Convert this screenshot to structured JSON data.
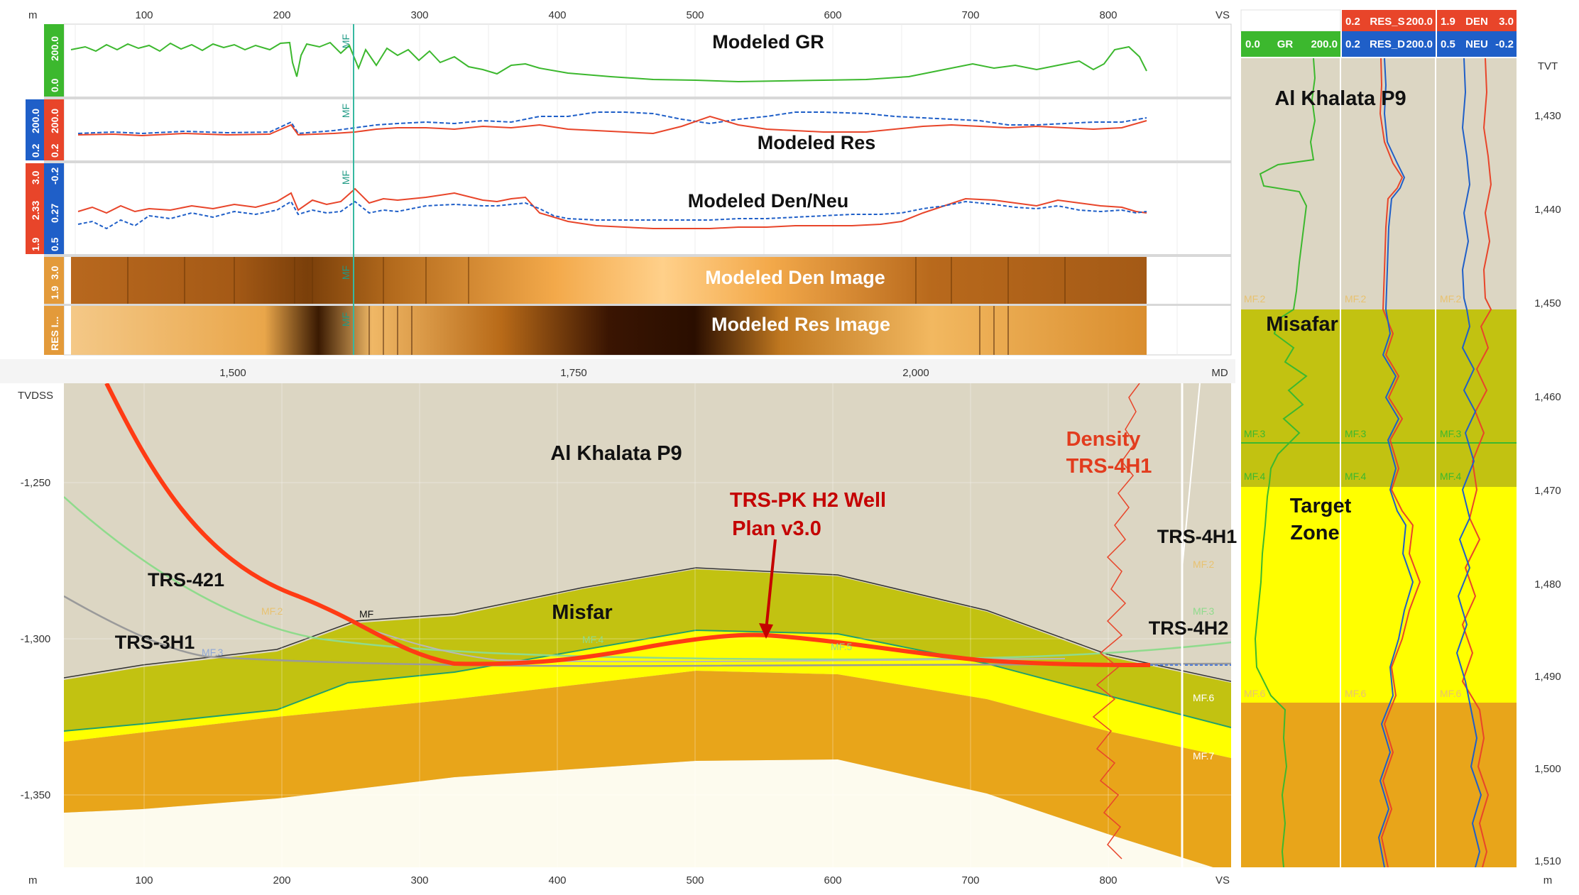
{
  "top_axis": {
    "unit": "m",
    "ticks": [
      "100",
      "200",
      "300",
      "400",
      "500",
      "600",
      "700",
      "800"
    ],
    "end_label": "VS"
  },
  "tracks": {
    "gr": {
      "title": "Modeled GR",
      "scale": [
        "0.0",
        "200.0"
      ],
      "marker": "MF"
    },
    "res": {
      "title": "Modeled Res",
      "scale_blue": [
        "0.2",
        "200.0"
      ],
      "scale_red": [
        "0.2",
        "200.0"
      ],
      "marker": "MF"
    },
    "denneu": {
      "title": "Modeled Den/Neu",
      "scale_red": [
        "1.9",
        "2.33",
        "3.0"
      ],
      "scale_blue": [
        "0.5",
        "0.27",
        "-0.2"
      ],
      "marker": "MF"
    },
    "den_image": {
      "title": "Modeled Den Image",
      "scale": [
        "1.9",
        "3.0"
      ],
      "marker": "MF"
    },
    "res_image": {
      "title": "Modeled Res Image",
      "scale": [
        "RES I..."
      ],
      "marker": "MF"
    }
  },
  "md_axis": {
    "ticks": [
      "1,500",
      "1,750",
      "2,000"
    ],
    "end_label": "MD"
  },
  "section": {
    "y_label": "TVDSS",
    "y_ticks": [
      "-1,250",
      "-1,300",
      "-1,350"
    ],
    "zone_labels": [
      "Al Khalata P9",
      "Misfar"
    ],
    "wells": [
      "TRS-421",
      "TRS-3H1",
      "TRS-4H1",
      "TRS-4H2"
    ],
    "plan_label_line1": "TRS-PK H2 Well",
    "plan_label_line2": "Plan v3.0",
    "density_label_line1": "Density",
    "density_label_line2": "TRS-4H1",
    "marker_labels": [
      "MF",
      "MF.2",
      "MF.3",
      "MF.4",
      "MF.5",
      "MF.6",
      "MF.7"
    ]
  },
  "bottom_axis": {
    "unit": "m",
    "ticks": [
      "100",
      "200",
      "300",
      "400",
      "500",
      "600",
      "700",
      "800"
    ],
    "end_label": "VS"
  },
  "offset_panel": {
    "headers": {
      "gr": [
        "0.0",
        "GR",
        "200.0"
      ],
      "res_s": [
        "0.2",
        "RES_S",
        "200.0"
      ],
      "res_d": [
        "0.2",
        "RES_D",
        "200.0"
      ],
      "den": [
        "1.9",
        "DEN",
        "3.0"
      ],
      "neu": [
        "0.5",
        "NEU",
        "-0.2"
      ]
    },
    "depth_label": "TVT",
    "depth_ticks": [
      "1,430",
      "1,440",
      "1,450",
      "1,460",
      "1,470",
      "1,480",
      "1,490",
      "1,500",
      "1,510"
    ],
    "depth_unit": "m",
    "zones": [
      "Al Khalata P9",
      "Misafar",
      "Target",
      "Zone"
    ],
    "markers": [
      "MF.2",
      "MF.3",
      "MF.4",
      "MF.6"
    ]
  },
  "colors": {
    "gr": "#3cb82e",
    "res_deep": "#1f5fc8",
    "res_shallow": "#e8452a",
    "al_khalata": "#dcd6c3",
    "misfar": "#c2c211",
    "target": "#ffff00",
    "lower": "#e8a51a",
    "well_plan": "#ff3b14"
  }
}
